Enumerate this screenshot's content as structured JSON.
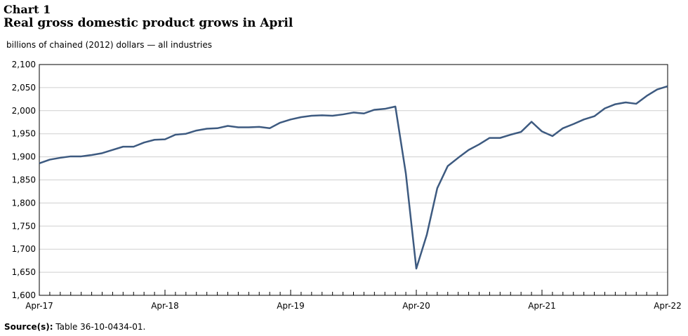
{
  "chart_label": "Chart 1",
  "source": {
    "label": "Source(s):",
    "text": " Table 36-10-0434-01."
  },
  "chart_data": {
    "type": "line",
    "title": "Real gross domestic product grows in April",
    "subtitle": "billions of chained (2012) dollars — all industries",
    "xlabel": "",
    "ylabel": "",
    "ylim": [
      1600,
      2100
    ],
    "yticks": [
      "1,600",
      "1,650",
      "1,700",
      "1,750",
      "1,800",
      "1,850",
      "1,900",
      "1,950",
      "2,000",
      "2,050",
      "2,100"
    ],
    "xtick_labels": [
      "Apr-17",
      "Apr-18",
      "Apr-19",
      "Apr-20",
      "Apr-21",
      "Apr-22"
    ],
    "grid": true,
    "line_color": "#3d5a80",
    "series": [
      {
        "x": [
          "Apr-17",
          "May-17",
          "Jun-17",
          "Jul-17",
          "Aug-17",
          "Sep-17",
          "Oct-17",
          "Nov-17",
          "Dec-17",
          "Jan-18",
          "Feb-18",
          "Mar-18",
          "Apr-18",
          "May-18",
          "Jun-18",
          "Jul-18",
          "Aug-18",
          "Sep-18",
          "Oct-18",
          "Nov-18",
          "Dec-18",
          "Jan-19",
          "Feb-19",
          "Mar-19",
          "Apr-19",
          "May-19",
          "Jun-19",
          "Jul-19",
          "Aug-19",
          "Sep-19",
          "Oct-19",
          "Nov-19",
          "Dec-19",
          "Jan-20",
          "Feb-20",
          "Mar-20",
          "Apr-20",
          "May-20",
          "Jun-20",
          "Jul-20",
          "Aug-20",
          "Sep-20",
          "Oct-20",
          "Nov-20",
          "Dec-20",
          "Jan-21",
          "Feb-21",
          "Mar-21",
          "Apr-21",
          "May-21",
          "Jun-21",
          "Jul-21",
          "Aug-21",
          "Sep-21",
          "Oct-21",
          "Nov-21",
          "Dec-21",
          "Jan-22",
          "Feb-22",
          "Mar-22",
          "Apr-22"
        ],
        "values": [
          1886,
          1894,
          1898,
          1901,
          1901,
          1904,
          1908,
          1915,
          1922,
          1922,
          1931,
          1937,
          1938,
          1948,
          1950,
          1957,
          1961,
          1962,
          1967,
          1964,
          1964,
          1965,
          1962,
          1974,
          1981,
          1986,
          1989,
          1990,
          1989,
          1992,
          1996,
          1994,
          2002,
          2004,
          2009,
          1864,
          1658,
          1731,
          1832,
          1880,
          1898,
          1915,
          1927,
          1941,
          1941,
          1948,
          1954,
          1976,
          1955,
          1945,
          1962,
          1971,
          1981,
          1988,
          2005,
          2014,
          2018,
          2015,
          2032,
          2046,
          2053
        ]
      }
    ]
  }
}
